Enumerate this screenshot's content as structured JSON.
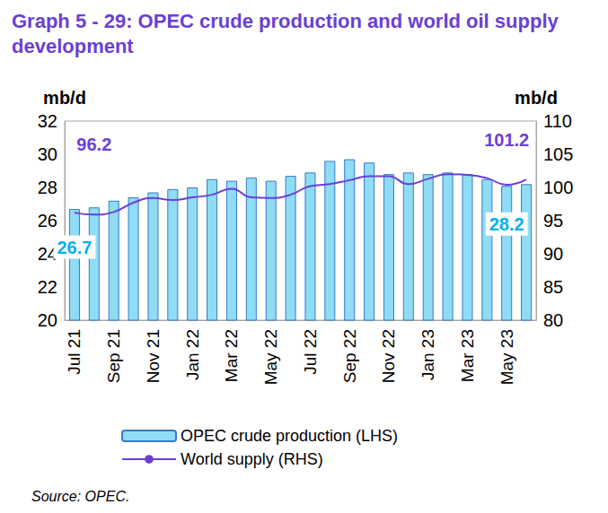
{
  "chart_data": {
    "type": "bar",
    "title": "Graph 5 - 29: OPEC crude production and world oil supply development",
    "source": "Source: OPEC.",
    "y_label": "mb/d",
    "y2_label": "mb/d",
    "categories": [
      "Jul 21",
      null,
      "Sep 21",
      null,
      "Nov 21",
      null,
      "Jan 22",
      null,
      "Mar 22",
      null,
      "May 22",
      null,
      "Jul 22",
      null,
      "Sep 22",
      null,
      "Nov 22",
      null,
      "Jan 23",
      null,
      "Mar 23",
      null,
      "May 23",
      null
    ],
    "series": [
      {
        "name": "OPEC crude production (LHS)",
        "type": "bar",
        "color": "#8fdcf5",
        "values": [
          26.7,
          26.8,
          27.2,
          27.4,
          27.7,
          27.9,
          28.0,
          28.5,
          28.4,
          28.6,
          28.4,
          28.7,
          28.9,
          29.6,
          29.7,
          29.5,
          28.8,
          28.9,
          28.8,
          28.9,
          28.8,
          28.5,
          28.1,
          28.2
        ]
      },
      {
        "name": "World supply (RHS)",
        "type": "line",
        "color": "#6a3fd4",
        "axis": "y2",
        "values": [
          96.2,
          95.9,
          96.3,
          97.7,
          98.4,
          98.1,
          98.5,
          98.9,
          99.8,
          98.5,
          98.4,
          98.9,
          100.2,
          100.5,
          101.1,
          101.7,
          101.7,
          100.5,
          101.3,
          102.0,
          101.9,
          101.4,
          100.4,
          101.2
        ]
      }
    ],
    "annotations": [
      {
        "text": "96.2",
        "series": "World supply (RHS)",
        "x": 0.6,
        "y": 106.5,
        "color": "#6a3fd4"
      },
      {
        "text": "101.2",
        "series": "World supply (RHS)",
        "x": 22.3,
        "y": 107.2,
        "color": "#6a3fd4"
      },
      {
        "text": "26.7",
        "series": "OPEC crude production (LHS)",
        "x": 0.3,
        "y": 24.4,
        "color": "#00b0f0"
      },
      {
        "text": "28.2",
        "series": "OPEC crude production (LHS)",
        "x": 22.3,
        "y": 25.8,
        "color": "#00b0f0"
      }
    ],
    "ylim": [
      20,
      32
    ],
    "yticks": [
      20,
      22,
      24,
      26,
      28,
      30,
      32
    ],
    "y2lim": [
      80,
      110
    ],
    "y2ticks": [
      80,
      85,
      90,
      95,
      100,
      105,
      110
    ],
    "grid": false,
    "legend": "bottom"
  }
}
